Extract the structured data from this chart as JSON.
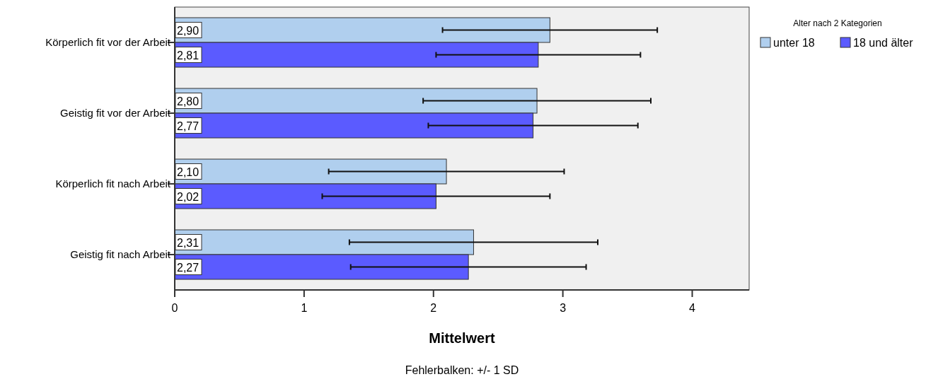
{
  "chart_data": {
    "type": "bar",
    "orientation": "horizontal",
    "categories": [
      "Körperlich fit vor der Arbeit",
      "Geistig fit vor der Arbeit",
      "Körperlich fit nach Arbeit",
      "Geistig fit nach Arbeit"
    ],
    "series": [
      {
        "name": "unter 18",
        "color": "#b0cfee",
        "values": [
          2.9,
          2.8,
          2.1,
          2.31
        ],
        "errors": [
          0.83,
          0.88,
          0.91,
          0.96
        ],
        "value_labels": [
          "2,90",
          "2,80",
          "2,10",
          "2,31"
        ]
      },
      {
        "name": "18 und älter",
        "color": "#5b5bff",
        "values": [
          2.81,
          2.77,
          2.02,
          2.27
        ],
        "errors": [
          0.79,
          0.81,
          0.88,
          0.91
        ],
        "value_labels": [
          "2,81",
          "2,77",
          "2,02",
          "2,27"
        ]
      }
    ],
    "xlim": [
      0,
      4.44
    ],
    "xticks": [
      0,
      1,
      2,
      3,
      4
    ],
    "xlabel": "Mittelwert",
    "legend_title": "Alter nach 2 Kategorien",
    "legend": "top right",
    "grid": false,
    "annotations": [
      "Fehlerbalken: +/- 1 SD"
    ]
  }
}
